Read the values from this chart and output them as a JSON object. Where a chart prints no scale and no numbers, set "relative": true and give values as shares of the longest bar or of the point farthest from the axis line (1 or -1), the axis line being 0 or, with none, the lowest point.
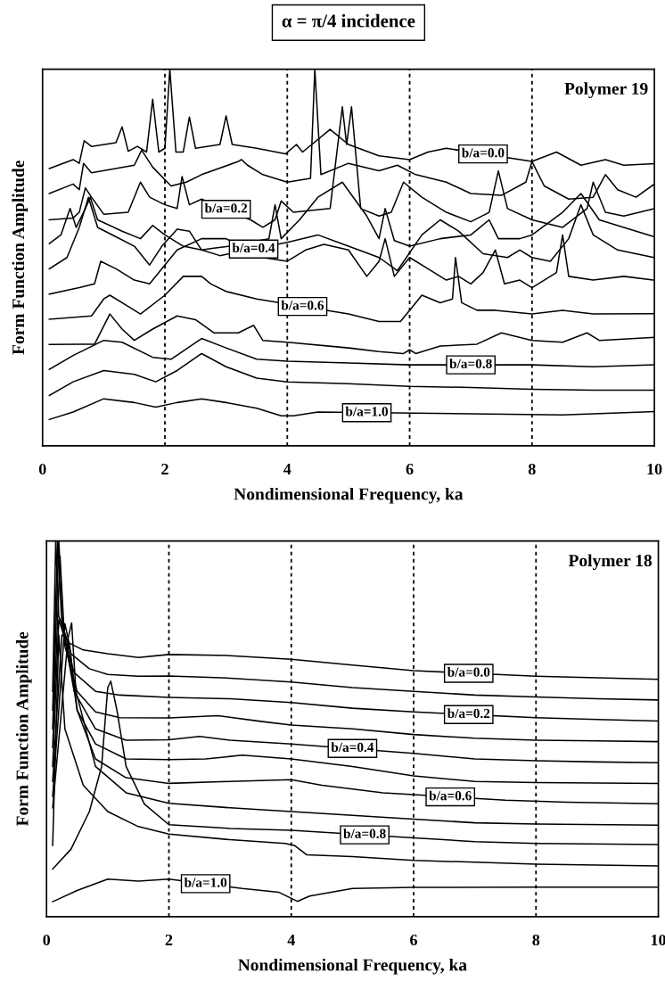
{
  "chart_data": [
    {
      "type": "line",
      "title": "α = π/4 incidence",
      "xlabel": "Nondimensional Frequency, ka",
      "ylabel": "Form Function Amplitude",
      "relative": true,
      "xlim": [
        0,
        10
      ],
      "xticks": [
        0,
        2,
        4,
        6,
        8,
        10
      ],
      "line_style": "solid",
      "ref_lines": [
        {
          "axis": "x",
          "value": 2,
          "line_style": "dotted"
        },
        {
          "axis": "x",
          "value": 4,
          "line_style": "dotted"
        },
        {
          "axis": "x",
          "value": 6,
          "line_style": "dotted"
        },
        {
          "axis": "x",
          "value": 8,
          "line_style": "dotted"
        }
      ],
      "annotations": [
        "Polymer 19",
        {
          "text": "b/a=0.0",
          "x": 7.2,
          "y": 0.775
        },
        {
          "text": "b/a=0.2",
          "x": 3.0,
          "y": 0.628
        },
        {
          "text": "b/a=0.4",
          "x": 3.45,
          "y": 0.5225
        },
        {
          "text": "b/a=0.6",
          "x": 4.25,
          "y": 0.37
        },
        {
          "text": "b/a=0.8",
          "x": 7.0,
          "y": 0.215
        },
        {
          "text": "b/a=1.0",
          "x": 5.3,
          "y": 0.088
        }
      ],
      "series": [
        {
          "color": "#000000",
          "x": [
            0.11,
            0.5,
            0.6,
            0.68,
            0.8,
            1.2,
            1.3,
            1.4,
            1.55,
            1.7,
            1.8,
            1.9,
            2.0,
            2.08,
            2.18,
            2.3,
            2.4,
            2.5,
            2.9,
            3.0,
            3.1,
            3.5,
            3.97,
            4.15,
            4.25,
            4.7,
            5.0,
            5.5,
            6.0,
            6.3,
            6.6,
            8.0,
            8.4,
            8.8,
            9.2,
            9.5,
            10.0
          ],
          "values": [
            0.736,
            0.76,
            0.75,
            0.81,
            0.795,
            0.805,
            0.847,
            0.782,
            0.795,
            0.78,
            0.92,
            0.78,
            0.79,
            1.0,
            0.78,
            0.78,
            0.873,
            0.79,
            0.8,
            0.876,
            0.8,
            0.79,
            0.775,
            0.8,
            0.78,
            0.84,
            0.8,
            0.77,
            0.76,
            0.78,
            0.79,
            0.755,
            0.78,
            0.745,
            0.76,
            0.745,
            0.749
          ]
        },
        {
          "color": "#000000",
          "x": [
            0.11,
            0.5,
            0.6,
            0.67,
            0.8,
            1.5,
            1.62,
            1.8,
            2.1,
            2.35,
            2.6,
            3.2,
            3.25,
            3.35,
            3.6,
            4.0,
            4.38,
            4.45,
            4.55,
            5.0,
            5.5,
            5.8,
            6.1,
            6.6,
            7.0,
            7.5,
            7.9,
            8.0,
            8.2,
            8.6,
            9.0,
            9.2,
            9.4,
            9.7,
            10.0
          ],
          "values": [
            0.67,
            0.695,
            0.68,
            0.75,
            0.725,
            0.745,
            0.785,
            0.74,
            0.69,
            0.7,
            0.72,
            0.755,
            0.76,
            0.745,
            0.72,
            0.7,
            0.71,
            1.0,
            0.72,
            0.75,
            0.73,
            0.745,
            0.72,
            0.7,
            0.67,
            0.665,
            0.7,
            0.755,
            0.69,
            0.655,
            0.66,
            0.72,
            0.68,
            0.66,
            0.695
          ]
        },
        {
          "color": "#000000",
          "x": [
            0.11,
            0.5,
            0.6,
            0.7,
            0.8,
            1.0,
            1.4,
            1.6,
            1.75,
            2.0,
            2.2,
            2.28,
            2.4,
            2.6,
            3.4,
            3.6,
            3.8,
            3.9,
            4.1,
            4.7,
            4.9,
            4.97,
            5.05,
            5.2,
            5.5,
            5.7,
            5.9,
            6.2,
            6.6,
            7.0,
            7.3,
            7.45,
            7.6,
            8.0,
            8.5,
            8.9,
            9.0,
            9.2,
            9.5,
            10.0
          ],
          "values": [
            0.6,
            0.605,
            0.62,
            0.685,
            0.66,
            0.615,
            0.62,
            0.7,
            0.66,
            0.64,
            0.63,
            0.715,
            0.64,
            0.655,
            0.6,
            0.58,
            0.6,
            0.65,
            0.62,
            0.63,
            0.9,
            0.8,
            0.9,
            0.63,
            0.61,
            0.62,
            0.7,
            0.66,
            0.62,
            0.595,
            0.62,
            0.73,
            0.63,
            0.6,
            0.58,
            0.63,
            0.7,
            0.62,
            0.61,
            0.63
          ]
        },
        {
          "color": "#000000",
          "x": [
            0.11,
            0.3,
            0.45,
            0.55,
            0.7,
            0.78,
            0.9,
            1.3,
            1.6,
            1.8,
            2.0,
            2.3,
            2.6,
            2.8,
            3.05,
            3.7,
            3.8,
            3.9,
            4.2,
            4.5,
            4.9,
            5.3,
            5.5,
            5.6,
            5.75,
            6.0,
            6.5,
            7.0,
            7.3,
            7.45,
            7.8,
            8.0,
            8.5,
            8.8,
            9.1,
            9.5,
            10.0
          ],
          "values": [
            0.537,
            0.56,
            0.63,
            0.58,
            0.63,
            0.66,
            0.6,
            0.57,
            0.55,
            0.585,
            0.56,
            0.53,
            0.52,
            0.525,
            0.53,
            0.55,
            0.64,
            0.55,
            0.6,
            0.66,
            0.7,
            0.61,
            0.55,
            0.63,
            0.545,
            0.53,
            0.55,
            0.56,
            0.6,
            0.55,
            0.55,
            0.56,
            0.62,
            0.67,
            0.6,
            0.58,
            0.555
          ]
        },
        {
          "color": "#000000",
          "x": [
            0.11,
            0.4,
            0.6,
            0.75,
            0.9,
            1.2,
            1.5,
            1.75,
            1.95,
            2.2,
            2.4,
            2.6,
            2.9,
            4.0,
            4.5,
            5.0,
            5.5,
            5.8,
            6.2,
            6.5,
            6.8,
            7.2,
            7.6,
            7.8,
            8.0,
            8.3,
            8.6,
            8.8,
            9.0,
            9.4,
            10.0
          ],
          "values": [
            0.47,
            0.5,
            0.58,
            0.66,
            0.58,
            0.555,
            0.53,
            0.48,
            0.53,
            0.575,
            0.57,
            0.52,
            0.505,
            0.54,
            0.56,
            0.53,
            0.5,
            0.465,
            0.56,
            0.6,
            0.57,
            0.51,
            0.5,
            0.52,
            0.5,
            0.49,
            0.55,
            0.64,
            0.56,
            0.52,
            0.5
          ]
        },
        {
          "color": "#000000",
          "x": [
            0.11,
            0.6,
            0.85,
            0.95,
            1.2,
            1.5,
            1.75,
            2.2,
            2.6,
            3.0,
            3.6,
            4.0,
            4.3,
            4.6,
            5.0,
            5.3,
            5.45,
            5.5,
            5.6,
            5.75,
            6.0,
            6.3,
            6.6,
            6.8,
            7.0,
            7.2,
            7.4,
            7.55,
            7.8,
            8.0,
            8.2,
            8.4,
            8.5,
            8.6,
            9.0,
            9.5,
            10.0
          ],
          "values": [
            0.403,
            0.42,
            0.43,
            0.49,
            0.47,
            0.44,
            0.43,
            0.52,
            0.55,
            0.55,
            0.5,
            0.49,
            0.52,
            0.535,
            0.52,
            0.45,
            0.48,
            0.49,
            0.55,
            0.45,
            0.5,
            0.47,
            0.44,
            0.45,
            0.43,
            0.46,
            0.52,
            0.43,
            0.44,
            0.42,
            0.44,
            0.46,
            0.56,
            0.45,
            0.44,
            0.45,
            0.44
          ]
        },
        {
          "color": "#000000",
          "x": [
            0.11,
            0.8,
            1.0,
            1.1,
            1.4,
            1.6,
            2.0,
            2.3,
            2.6,
            2.75,
            3.0,
            3.5,
            5.0,
            5.5,
            5.85,
            6.05,
            6.2,
            6.5,
            6.7,
            6.75,
            6.85,
            7.1,
            7.4,
            8.0,
            8.5,
            9.0,
            10.0
          ],
          "values": [
            0.336,
            0.345,
            0.39,
            0.4,
            0.37,
            0.35,
            0.4,
            0.45,
            0.45,
            0.43,
            0.41,
            0.39,
            0.35,
            0.33,
            0.33,
            0.37,
            0.4,
            0.38,
            0.39,
            0.5,
            0.38,
            0.36,
            0.36,
            0.35,
            0.36,
            0.35,
            0.351
          ]
        },
        {
          "color": "#000000",
          "x": [
            0.11,
            0.6,
            0.85,
            1.1,
            1.3,
            1.5,
            1.8,
            2.2,
            2.5,
            2.8,
            3.2,
            3.45,
            3.6,
            4.0,
            5.0,
            5.5,
            5.9,
            6.0,
            6.1,
            6.5,
            7.1,
            7.5,
            8.0,
            8.5,
            8.9,
            9.1,
            10.0
          ],
          "values": [
            0.269,
            0.27,
            0.27,
            0.35,
            0.31,
            0.28,
            0.31,
            0.345,
            0.335,
            0.3,
            0.3,
            0.32,
            0.28,
            0.275,
            0.26,
            0.25,
            0.245,
            0.255,
            0.245,
            0.265,
            0.27,
            0.3,
            0.28,
            0.275,
            0.3,
            0.28,
            0.288
          ]
        },
        {
          "color": "#000000",
          "x": [
            0.11,
            0.5,
            1.0,
            1.3,
            1.8,
            2.1,
            2.6,
            3.0,
            3.5,
            4.0,
            5.0,
            6.0,
            8.0,
            9.0,
            10.0
          ],
          "values": [
            0.203,
            0.24,
            0.28,
            0.275,
            0.235,
            0.23,
            0.285,
            0.26,
            0.23,
            0.225,
            0.22,
            0.215,
            0.215,
            0.21,
            0.215
          ]
        },
        {
          "color": "#000000",
          "x": [
            0.11,
            0.5,
            1.0,
            1.5,
            1.85,
            2.2,
            2.6,
            3.0,
            3.5,
            4.0,
            5.0,
            6.0,
            7.0,
            8.0,
            9.0,
            10.0
          ],
          "values": [
            0.134,
            0.17,
            0.2,
            0.19,
            0.17,
            0.2,
            0.245,
            0.21,
            0.18,
            0.17,
            0.165,
            0.158,
            0.155,
            0.15,
            0.148,
            0.148
          ]
        },
        {
          "color": "#000000",
          "x": [
            0.11,
            0.5,
            1.0,
            1.5,
            1.85,
            2.2,
            2.6,
            3.0,
            3.5,
            3.9,
            4.1,
            4.5,
            7.0,
            8.5,
            10.0
          ],
          "values": [
            0.07,
            0.09,
            0.125,
            0.115,
            0.103,
            0.115,
            0.125,
            0.115,
            0.1,
            0.08,
            0.08,
            0.09,
            0.085,
            0.082,
            0.091
          ]
        }
      ]
    },
    {
      "type": "line",
      "xlabel": "Nondimensional Frequency, ka",
      "ylabel": "Form Function Amplitude",
      "relative": true,
      "xlim": [
        0,
        10
      ],
      "xticks": [
        0,
        2,
        4,
        6,
        8,
        10
      ],
      "line_style": "solid",
      "ref_lines": [
        {
          "axis": "x",
          "value": 2,
          "line_style": "dotted"
        },
        {
          "axis": "x",
          "value": 4,
          "line_style": "dotted"
        },
        {
          "axis": "x",
          "value": 6,
          "line_style": "dotted"
        },
        {
          "axis": "x",
          "value": 8,
          "line_style": "dotted"
        }
      ],
      "annotations": [
        "Polymer 18",
        {
          "text": "b/a=0.0",
          "x": 6.9,
          "y": 0.648
        },
        {
          "text": "b/a=0.2",
          "x": 6.9,
          "y": 0.538
        },
        {
          "text": "b/a=0.4",
          "x": 5.0,
          "y": 0.448
        },
        {
          "text": "b/a=0.6",
          "x": 6.6,
          "y": 0.319
        },
        {
          "text": "b/a=0.8",
          "x": 5.2,
          "y": 0.218
        },
        {
          "text": "b/a=1.0",
          "x": 2.6,
          "y": 0.088
        }
      ],
      "series": [
        {
          "color": "#000000",
          "x": [
            0.1,
            0.15,
            0.2,
            0.35,
            0.6,
            1.0,
            1.5,
            2.0,
            3.0,
            4.0,
            5.0,
            6.0,
            8.0,
            9.0,
            10.0
          ],
          "values": [
            0.6,
            1.0,
            0.8,
            0.73,
            0.71,
            0.7,
            0.69,
            0.698,
            0.695,
            0.685,
            0.67,
            0.655,
            0.64,
            0.636,
            0.632
          ]
        },
        {
          "color": "#000000",
          "x": [
            0.1,
            0.18,
            0.25,
            0.4,
            0.7,
            1.0,
            1.5,
            2.0,
            3.0,
            4.0,
            5.0,
            6.0,
            7.0,
            8.0,
            9.0,
            10.0
          ],
          "values": [
            0.55,
            1.0,
            0.78,
            0.7,
            0.66,
            0.645,
            0.64,
            0.641,
            0.635,
            0.625,
            0.61,
            0.6,
            0.59,
            0.585,
            0.58,
            0.577
          ]
        },
        {
          "color": "#000000",
          "x": [
            0.1,
            0.2,
            0.28,
            0.45,
            0.8,
            1.2,
            2.0,
            3.0,
            4.0,
            5.0,
            6.0,
            8.0,
            9.0,
            10.0
          ],
          "values": [
            0.5,
            1.0,
            0.75,
            0.65,
            0.6,
            0.59,
            0.584,
            0.58,
            0.57,
            0.555,
            0.545,
            0.53,
            0.525,
            0.521
          ]
        },
        {
          "color": "#000000",
          "x": [
            0.1,
            0.22,
            0.3,
            0.5,
            0.8,
            1.2,
            2.0,
            2.8,
            3.5,
            4.0,
            5.0,
            6.0,
            7.0,
            8.0,
            9.0,
            10.0
          ],
          "values": [
            0.45,
            0.96,
            0.72,
            0.6,
            0.545,
            0.53,
            0.529,
            0.535,
            0.52,
            0.51,
            0.5,
            0.485,
            0.475,
            0.47,
            0.468,
            0.466
          ]
        },
        {
          "color": "#000000",
          "x": [
            0.1,
            0.2,
            0.3,
            0.45,
            0.8,
            1.3,
            2.0,
            2.5,
            3.0,
            4.0,
            6.0,
            7.0,
            8.0,
            9.0,
            10.0
          ],
          "values": [
            0.4,
            0.79,
            0.74,
            0.6,
            0.5,
            0.47,
            0.471,
            0.48,
            0.47,
            0.46,
            0.435,
            0.42,
            0.415,
            0.412,
            0.41
          ]
        },
        {
          "color": "#000000",
          "x": [
            0.1,
            0.25,
            0.33,
            0.5,
            0.8,
            1.3,
            2.0,
            2.6,
            3.2,
            4.0,
            5.0,
            6.0,
            7.0,
            8.0,
            9.0,
            10.0
          ],
          "values": [
            0.36,
            0.75,
            0.74,
            0.55,
            0.46,
            0.42,
            0.418,
            0.42,
            0.43,
            0.42,
            0.4,
            0.375,
            0.36,
            0.357,
            0.356,
            0.355
          ]
        },
        {
          "color": "#000000",
          "x": [
            0.1,
            0.3,
            0.38,
            0.5,
            0.8,
            1.3,
            2.0,
            3.0,
            4.0,
            4.5,
            5.5,
            7.5,
            8.5,
            10.0
          ],
          "values": [
            0.32,
            0.78,
            0.72,
            0.55,
            0.42,
            0.37,
            0.355,
            0.36,
            0.365,
            0.35,
            0.33,
            0.31,
            0.305,
            0.301
          ]
        },
        {
          "color": "#000000",
          "x": [
            0.1,
            0.35,
            0.41,
            0.48,
            0.8,
            1.3,
            2.0,
            3.0,
            4.0,
            5.0,
            6.0,
            7.0,
            8.0,
            10.0
          ],
          "values": [
            0.29,
            0.74,
            0.782,
            0.6,
            0.4,
            0.33,
            0.302,
            0.29,
            0.28,
            0.27,
            0.26,
            0.25,
            0.247,
            0.244
          ]
        },
        {
          "color": "#000000",
          "x": [
            0.1,
            0.4,
            0.7,
            0.9,
            1.0,
            1.05,
            1.15,
            1.3,
            1.6,
            2.0,
            3.0,
            4.0,
            6.0,
            7.0,
            8.0,
            10.0
          ],
          "values": [
            0.127,
            0.18,
            0.28,
            0.4,
            0.61,
            0.627,
            0.55,
            0.4,
            0.3,
            0.245,
            0.235,
            0.23,
            0.21,
            0.2,
            0.195,
            0.192
          ]
        },
        {
          "color": "#000000",
          "x": [
            0.1,
            0.2,
            0.3,
            0.6,
            1.0,
            1.5,
            2.0,
            3.0,
            3.9,
            4.05,
            4.25,
            5.0,
            6.0,
            7.0,
            8.0,
            10.0
          ],
          "values": [
            0.19,
            0.75,
            0.5,
            0.35,
            0.28,
            0.24,
            0.22,
            0.205,
            0.195,
            0.19,
            0.165,
            0.16,
            0.15,
            0.145,
            0.14,
            0.135
          ]
        },
        {
          "color": "#000000",
          "x": [
            0.1,
            0.5,
            1.0,
            1.5,
            2.0,
            3.2,
            3.8,
            4.1,
            4.3,
            5.0,
            6.0,
            8.0,
            10.0
          ],
          "values": [
            0.04,
            0.07,
            0.1,
            0.095,
            0.1,
            0.075,
            0.065,
            0.041,
            0.055,
            0.075,
            0.078,
            0.079,
            0.079
          ]
        }
      ]
    }
  ]
}
